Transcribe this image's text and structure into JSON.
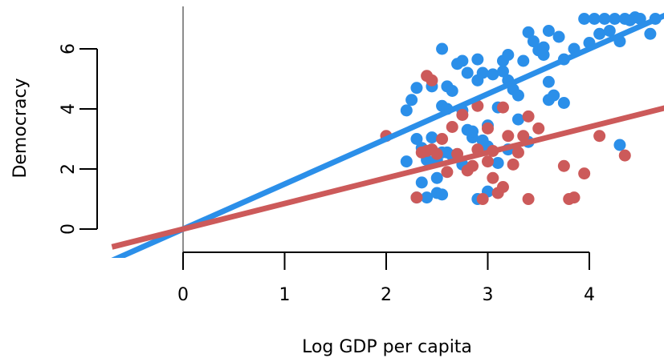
{
  "chart_data": {
    "type": "scatter",
    "title": "",
    "xlabel": "Log GDP per capita",
    "ylabel": "Democracy",
    "xlim": [
      -0.7,
      4.75
    ],
    "ylim": [
      -0.9,
      7.35
    ],
    "x_ticks": [
      0,
      1,
      2,
      3,
      4
    ],
    "y_ticks": [
      0,
      2,
      4,
      6
    ],
    "grid": false,
    "legend": "none",
    "reference_lines": [
      {
        "orientation": "vertical",
        "x": 0,
        "color": "#8c8c8c"
      }
    ],
    "series": [
      {
        "color": "#2b8fe9",
        "fit_line": {
          "intercept": 0,
          "slope": 1.5
        },
        "points": [
          [
            2.2,
            3.95
          ],
          [
            2.25,
            4.3
          ],
          [
            2.3,
            4.7
          ],
          [
            2.35,
            1.55
          ],
          [
            2.4,
            2.3
          ],
          [
            2.45,
            3.05
          ],
          [
            2.45,
            4.75
          ],
          [
            2.5,
            1.7
          ],
          [
            2.5,
            2.3
          ],
          [
            2.55,
            4.1
          ],
          [
            2.55,
            6.0
          ],
          [
            2.6,
            4.75
          ],
          [
            2.6,
            2.55
          ],
          [
            2.6,
            4.0
          ],
          [
            2.65,
            4.6
          ],
          [
            2.7,
            5.5
          ],
          [
            2.75,
            5.6
          ],
          [
            2.75,
            3.95
          ],
          [
            2.8,
            5.2
          ],
          [
            2.85,
            3.05
          ],
          [
            2.9,
            5.65
          ],
          [
            2.9,
            4.95
          ],
          [
            2.95,
            5.2
          ],
          [
            3.0,
            2.75
          ],
          [
            3.0,
            3.45
          ],
          [
            3.05,
            5.15
          ],
          [
            3.1,
            4.05
          ],
          [
            3.15,
            5.25
          ],
          [
            3.15,
            5.6
          ],
          [
            3.2,
            5.8
          ],
          [
            3.2,
            4.95
          ],
          [
            3.25,
            4.65
          ],
          [
            3.3,
            3.65
          ],
          [
            3.3,
            4.45
          ],
          [
            3.35,
            5.6
          ],
          [
            3.4,
            6.55
          ],
          [
            3.45,
            6.25
          ],
          [
            3.5,
            5.95
          ],
          [
            3.55,
            6.05
          ],
          [
            3.55,
            5.8
          ],
          [
            3.6,
            6.6
          ],
          [
            3.6,
            4.9
          ],
          [
            3.6,
            4.3
          ],
          [
            3.65,
            4.45
          ],
          [
            3.7,
            6.4
          ],
          [
            3.75,
            4.2
          ],
          [
            3.75,
            5.65
          ],
          [
            3.85,
            6.0
          ],
          [
            3.95,
            7.0
          ],
          [
            4.0,
            6.2
          ],
          [
            4.05,
            7.0
          ],
          [
            4.1,
            6.5
          ],
          [
            4.15,
            7.0
          ],
          [
            4.2,
            6.6
          ],
          [
            4.25,
            7.0
          ],
          [
            4.3,
            6.25
          ],
          [
            4.35,
            7.0
          ],
          [
            4.4,
            6.95
          ],
          [
            4.45,
            7.05
          ],
          [
            4.5,
            7.0
          ],
          [
            4.6,
            6.5
          ],
          [
            4.65,
            7.0
          ],
          [
            4.3,
            2.8
          ],
          [
            2.2,
            2.25
          ],
          [
            2.3,
            3.0
          ],
          [
            2.35,
            2.7
          ],
          [
            2.4,
            1.05
          ],
          [
            2.5,
            1.2
          ],
          [
            2.55,
            1.15
          ],
          [
            2.9,
            1.0
          ],
          [
            3.0,
            1.25
          ],
          [
            2.85,
            3.25
          ],
          [
            2.95,
            2.95
          ],
          [
            3.1,
            2.2
          ],
          [
            2.75,
            2.15
          ],
          [
            2.55,
            2.55
          ],
          [
            2.65,
            2.45
          ],
          [
            2.8,
            3.3
          ],
          [
            3.2,
            2.65
          ],
          [
            3.4,
            2.9
          ],
          [
            2.3,
            1.05
          ],
          [
            2.45,
            2.2
          ]
        ]
      },
      {
        "color": "#cc5a5a",
        "fit_line": {
          "intercept": 0,
          "slope": 0.85
        },
        "points": [
          [
            2.0,
            3.1
          ],
          [
            2.3,
            1.05
          ],
          [
            2.35,
            2.55
          ],
          [
            2.4,
            5.1
          ],
          [
            2.45,
            4.95
          ],
          [
            2.45,
            2.65
          ],
          [
            2.5,
            2.5
          ],
          [
            2.55,
            3.0
          ],
          [
            2.6,
            1.9
          ],
          [
            2.65,
            3.4
          ],
          [
            2.7,
            2.5
          ],
          [
            2.75,
            3.8
          ],
          [
            2.8,
            1.95
          ],
          [
            2.85,
            2.1
          ],
          [
            2.9,
            4.1
          ],
          [
            2.9,
            2.65
          ],
          [
            2.95,
            1.0
          ],
          [
            3.0,
            2.25
          ],
          [
            3.0,
            3.35
          ],
          [
            3.05,
            2.6
          ],
          [
            3.05,
            1.7
          ],
          [
            3.1,
            1.2
          ],
          [
            3.15,
            1.4
          ],
          [
            3.15,
            4.05
          ],
          [
            3.2,
            3.1
          ],
          [
            3.25,
            2.15
          ],
          [
            3.3,
            2.55
          ],
          [
            3.35,
            3.1
          ],
          [
            3.4,
            1.0
          ],
          [
            3.4,
            3.75
          ],
          [
            3.5,
            3.35
          ],
          [
            3.75,
            2.1
          ],
          [
            3.8,
            1.0
          ],
          [
            3.85,
            1.05
          ],
          [
            3.95,
            1.85
          ],
          [
            4.1,
            3.1
          ],
          [
            4.35,
            2.45
          ],
          [
            2.4,
            2.6
          ]
        ]
      }
    ]
  }
}
